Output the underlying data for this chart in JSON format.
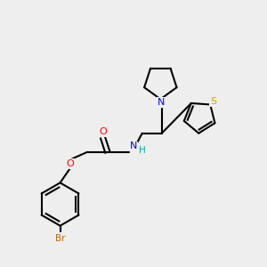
{
  "background_color": "#eeeeee",
  "bond_color": "#000000",
  "atom_colors": {
    "N": "#0000ff",
    "O": "#ff0000",
    "S": "#ccaa00",
    "Br": "#cc6600",
    "C": "#000000",
    "H": "#00aaaa"
  }
}
